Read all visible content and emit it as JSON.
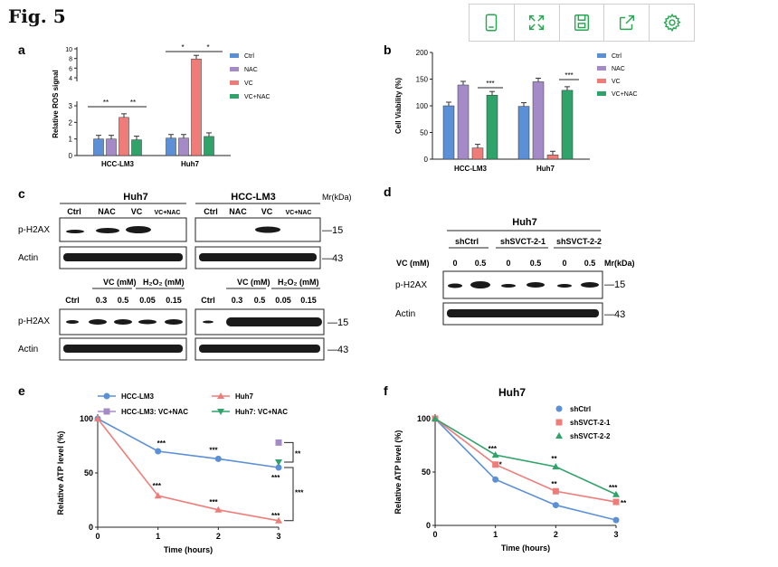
{
  "figure": {
    "title": "Fig. 5"
  },
  "toolbar": {
    "buttons": [
      "device-icon",
      "expand-icon",
      "save-icon",
      "share-icon",
      "settings-icon"
    ]
  },
  "colors": {
    "ctrl": "#5b8fd6",
    "nac": "#a48bc8",
    "vc": "#ee7d7a",
    "vcnac": "#2fa36a",
    "blue": "#5b8fd6",
    "red": "#ee7d7a",
    "green": "#2fa36a",
    "purple": "#a48bc8"
  },
  "panels": {
    "a": {
      "letter": "a"
    },
    "b": {
      "letter": "b"
    },
    "c": {
      "letter": "c",
      "huh7": "Huh7",
      "lm3": "HCC-LM3",
      "mr": "Mr(kDa)",
      "lanes_top": [
        "Ctrl",
        "NAC",
        "VC",
        "VC+NAC"
      ],
      "row_ph2ax": "p-H2AX",
      "row_actin": "Actin",
      "mw15": "—15",
      "mw43": "—43",
      "vc_mm": "VC (mM)",
      "h2o2_mm": "H₂O₂ (mM)",
      "lanes_bottom": [
        "Ctrl",
        "0.3",
        "0.5",
        "0.05",
        "0.15"
      ]
    },
    "d": {
      "letter": "d",
      "huh7": "Huh7",
      "mr": "Mr(kDa)",
      "groups": [
        "shCtrl",
        "shSVCT-2-1",
        "shSVCT-2-2"
      ],
      "vc_label": "VC (mM)",
      "doses": [
        "0",
        "0.5",
        "0",
        "0.5",
        "0",
        "0.5"
      ],
      "row_ph2ax": "p-H2AX",
      "row_actin": "Actin",
      "mw15": "—15",
      "mw43": "—43"
    },
    "e": {
      "letter": "e"
    },
    "f": {
      "letter": "f"
    }
  },
  "chart_data": [
    {
      "panel": "a",
      "type": "bar",
      "categories": [
        "HCC-LM3",
        "Huh7"
      ],
      "series": [
        {
          "name": "Ctrl",
          "values": [
            1.0,
            1.05
          ]
        },
        {
          "name": "NAC",
          "values": [
            1.0,
            1.05
          ]
        },
        {
          "name": "VC",
          "values": [
            2.3,
            7.9
          ]
        },
        {
          "name": "VC+NAC",
          "values": [
            0.95,
            1.15
          ]
        }
      ],
      "ylabel": "Relative ROS signal",
      "yticks": [
        "0",
        "1",
        "2",
        "3",
        "4",
        "6",
        "8",
        "10"
      ],
      "significance": [
        "**",
        "**",
        "*",
        "*"
      ]
    },
    {
      "panel": "b",
      "type": "bar",
      "categories": [
        "HCC-LM3",
        "Huh7"
      ],
      "series": [
        {
          "name": "Ctrl",
          "values": [
            100,
            99
          ]
        },
        {
          "name": "NAC",
          "values": [
            139,
            145
          ]
        },
        {
          "name": "VC",
          "values": [
            21,
            8
          ]
        },
        {
          "name": "VC+NAC",
          "values": [
            120,
            129
          ]
        }
      ],
      "ylabel": "Cell Viability (%)",
      "ylim": [
        0,
        200
      ],
      "yticks": [
        "0",
        "50",
        "100",
        "150",
        "200"
      ],
      "significance": [
        "***",
        "***"
      ]
    },
    {
      "panel": "e",
      "type": "line",
      "xlabel": "Time (hours)",
      "ylabel": "Relative ATP level (%)",
      "xlim": [
        0,
        3
      ],
      "ylim": [
        0,
        100
      ],
      "x": [
        0,
        1,
        2,
        3
      ],
      "series": [
        {
          "name": "HCC-LM3",
          "x": [
            0,
            1,
            2,
            3
          ],
          "values": [
            100,
            70,
            63,
            55
          ]
        },
        {
          "name": "Huh7",
          "x": [
            0,
            1,
            2,
            3
          ],
          "values": [
            100,
            29,
            16,
            6
          ]
        },
        {
          "name": "HCC-LM3: VC+NAC",
          "x": [
            3
          ],
          "values": [
            78
          ]
        },
        {
          "name": "Huh7: VC+NAC",
          "x": [
            3
          ],
          "values": [
            60
          ]
        }
      ],
      "annotations": [
        "***",
        "***",
        "***",
        "***",
        "***",
        "***",
        "**",
        "***"
      ]
    },
    {
      "panel": "f",
      "type": "line",
      "title": "Huh7",
      "xlabel": "Time (hours)",
      "ylabel": "Relative ATP level (%)",
      "xlim": [
        0,
        3
      ],
      "ylim": [
        0,
        100
      ],
      "x": [
        0,
        1,
        2,
        3
      ],
      "series": [
        {
          "name": "shCtrl",
          "values": [
            100,
            43,
            19,
            5
          ]
        },
        {
          "name": "shSVCT-2-1",
          "values": [
            100,
            57,
            32,
            22
          ]
        },
        {
          "name": "shSVCT-2-2",
          "values": [
            100,
            66,
            55,
            29
          ]
        }
      ],
      "annotations": [
        "***",
        "*",
        "**",
        "**",
        "***",
        "**"
      ]
    }
  ]
}
